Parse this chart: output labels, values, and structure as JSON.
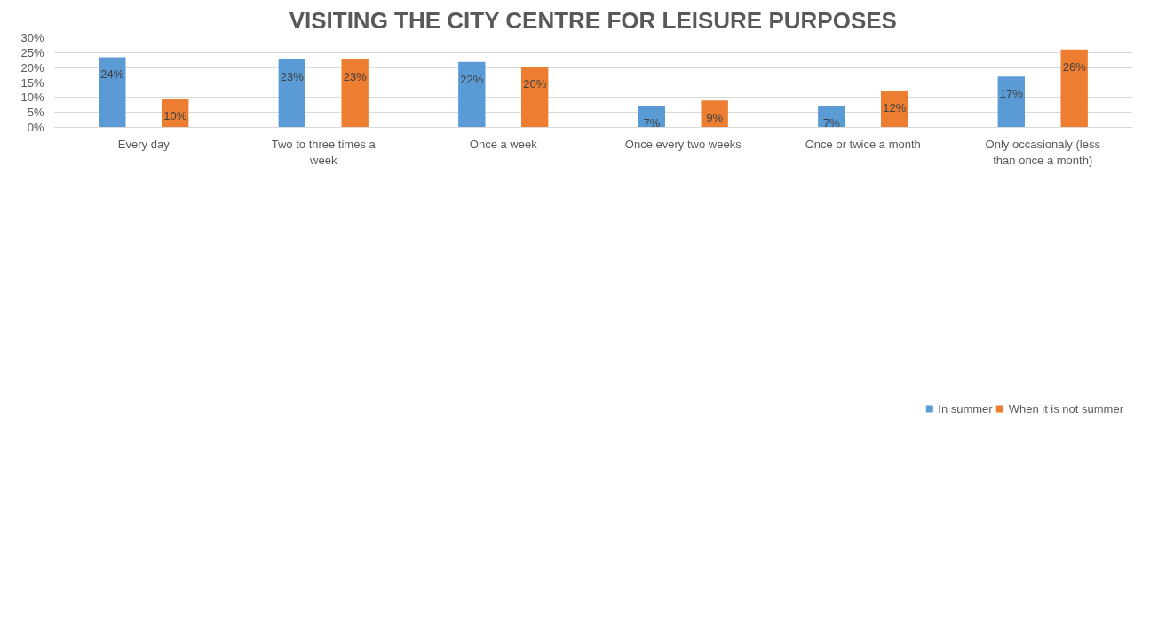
{
  "chart_data": {
    "type": "bar",
    "title": "VISITING THE CITY CENTRE FOR LEISURE PURPOSES",
    "categories": [
      "Every day",
      "Two to three times a week",
      "Once a week",
      "Once every two weeks",
      "Once or twice a month",
      "Only occasionaly (less than once a month)"
    ],
    "series": [
      {
        "name": "In summer",
        "color": "#5b9bd5",
        "values": [
          23.5,
          22.8,
          21.9,
          7.3,
          7.3,
          17.0
        ],
        "value_labels": [
          "24%",
          "23%",
          "22%",
          "7%",
          "7%",
          "17%"
        ]
      },
      {
        "name": "When it is not summer",
        "color": "#ed7d31",
        "values": [
          9.6,
          22.8,
          20.2,
          9.0,
          12.2,
          26.1
        ],
        "value_labels": [
          "10%",
          "23%",
          "20%",
          "9%",
          "12%",
          "26%"
        ]
      }
    ],
    "ylim": [
      0,
      30
    ],
    "yticks": [
      {
        "value": 0,
        "label": "0%"
      },
      {
        "value": 5,
        "label": "5%"
      },
      {
        "value": 10,
        "label": "10%"
      },
      {
        "value": 15,
        "label": "15%"
      },
      {
        "value": 20,
        "label": "20%"
      },
      {
        "value": 25,
        "label": "25%"
      },
      {
        "value": 30,
        "label": "30%"
      }
    ],
    "grid": "y",
    "legend": "bottom"
  }
}
